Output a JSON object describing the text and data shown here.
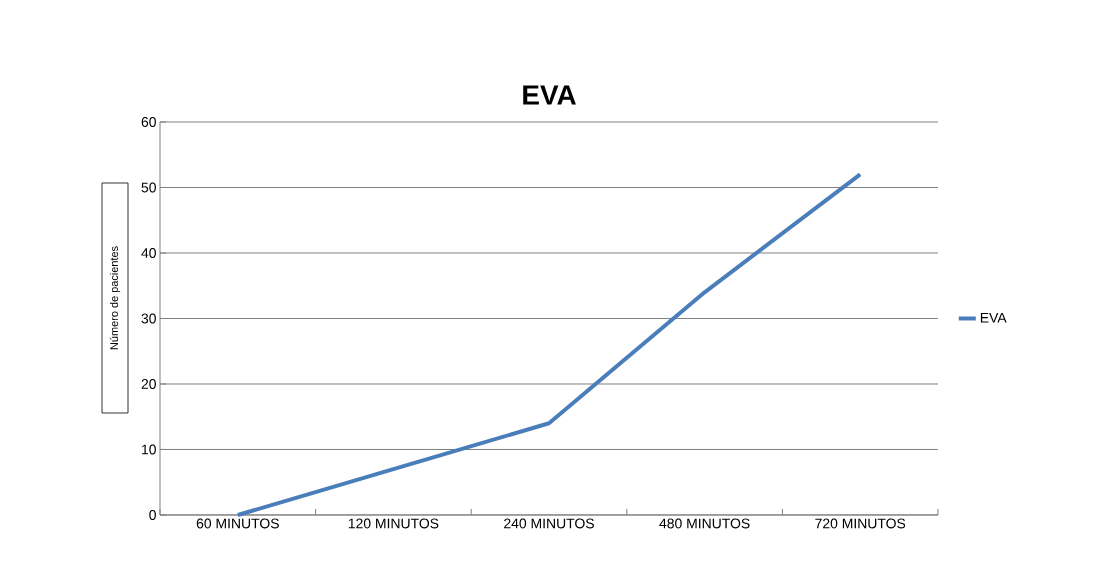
{
  "chart_data": {
    "type": "line",
    "title": "EVA",
    "ylabel": "Número de pacientes",
    "categories": [
      "60 MINUTOS",
      "120 MINUTOS",
      "240 MINUTOS",
      "480 MINUTOS",
      "720 MINUTOS"
    ],
    "series": [
      {
        "name": "EVA",
        "color": "#4a7ebb",
        "values": [
          0,
          7,
          14,
          34,
          52
        ]
      }
    ],
    "ylim": [
      0,
      60
    ],
    "yticks": [
      0,
      10,
      20,
      30,
      40,
      50,
      60
    ],
    "grid": "y",
    "legend": "right",
    "marker": "none",
    "line_style": "solid"
  }
}
